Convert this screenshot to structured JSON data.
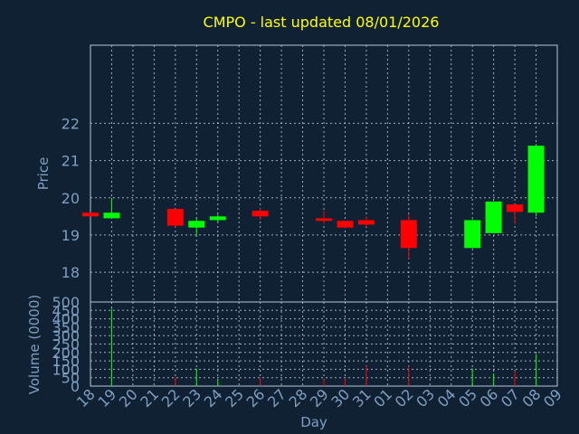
{
  "chart_data": {
    "type": "candlestick",
    "title": "CMPO - last updated 08/01/2026",
    "xlabel": "Day",
    "colors": {
      "background": "#0f2133",
      "frame": "#b8c8d8",
      "grid": "#b8c8d8",
      "title": "#ffff00",
      "axis_text": "#7f9fc0",
      "up": "#00ff00",
      "down": "#ff0000"
    },
    "x_tick_labels": [
      "18",
      "19",
      "20",
      "21",
      "22",
      "23",
      "24",
      "25",
      "26",
      "27",
      "28",
      "29",
      "30",
      "31",
      "01",
      "02",
      "03",
      "04",
      "05",
      "06",
      "07",
      "08",
      "09"
    ],
    "price_panel": {
      "ylabel": "Price",
      "ylim": [
        17.2,
        24.1
      ],
      "yticks": [
        18,
        19,
        20,
        21,
        22
      ],
      "candles": [
        {
          "day": "18",
          "open": 19.6,
          "high": 19.6,
          "low": 19.5,
          "close": 19.5
        },
        {
          "day": "19",
          "open": 19.45,
          "high": 20.0,
          "low": 19.45,
          "close": 19.6
        },
        {
          "day": "22",
          "open": 19.7,
          "high": 19.7,
          "low": 19.2,
          "close": 19.25
        },
        {
          "day": "23",
          "open": 19.2,
          "high": 19.45,
          "low": 19.0,
          "close": 19.38
        },
        {
          "day": "24",
          "open": 19.4,
          "high": 19.55,
          "low": 19.35,
          "close": 19.5
        },
        {
          "day": "26",
          "open": 19.65,
          "high": 19.72,
          "low": 19.4,
          "close": 19.5
        },
        {
          "day": "29",
          "open": 19.45,
          "high": 19.65,
          "low": 19.3,
          "close": 19.38
        },
        {
          "day": "30",
          "open": 19.38,
          "high": 19.38,
          "low": 19.2,
          "close": 19.2
        },
        {
          "day": "31",
          "open": 19.4,
          "high": 19.5,
          "low": 19.22,
          "close": 19.28
        },
        {
          "day": "02",
          "open": 19.4,
          "high": 19.55,
          "low": 18.35,
          "close": 18.65
        },
        {
          "day": "05",
          "open": 18.65,
          "high": 19.42,
          "low": 18.65,
          "close": 19.4
        },
        {
          "day": "06",
          "open": 19.05,
          "high": 19.9,
          "low": 19.05,
          "close": 19.9
        },
        {
          "day": "07",
          "open": 19.82,
          "high": 19.82,
          "low": 19.3,
          "close": 19.62
        },
        {
          "day": "08",
          "open": 19.6,
          "high": 21.45,
          "low": 19.5,
          "close": 21.4
        }
      ]
    },
    "volume_panel": {
      "ylabel": "Volume (0000)",
      "ylim": [
        0,
        500
      ],
      "yticks": [
        0,
        50,
        100,
        150,
        200,
        250,
        300,
        350,
        400,
        450,
        500
      ],
      "bars": [
        {
          "day": "19",
          "value": 460,
          "color": "#00ff00"
        },
        {
          "day": "22",
          "value": 55,
          "color": "#ff0000"
        },
        {
          "day": "23",
          "value": 105,
          "color": "#00ff00"
        },
        {
          "day": "24",
          "value": 35,
          "color": "#00ff00"
        },
        {
          "day": "26",
          "value": 50,
          "color": "#ff0000"
        },
        {
          "day": "29",
          "value": 40,
          "color": "#ff0000"
        },
        {
          "day": "30",
          "value": 45,
          "color": "#ff0000"
        },
        {
          "day": "31",
          "value": 120,
          "color": "#ff0000"
        },
        {
          "day": "02",
          "value": 120,
          "color": "#ff0000"
        },
        {
          "day": "05",
          "value": 105,
          "color": "#00ff00"
        },
        {
          "day": "06",
          "value": 75,
          "color": "#00ff00"
        },
        {
          "day": "07",
          "value": 90,
          "color": "#ff0000"
        },
        {
          "day": "08",
          "value": 190,
          "color": "#00ff00"
        }
      ]
    }
  }
}
